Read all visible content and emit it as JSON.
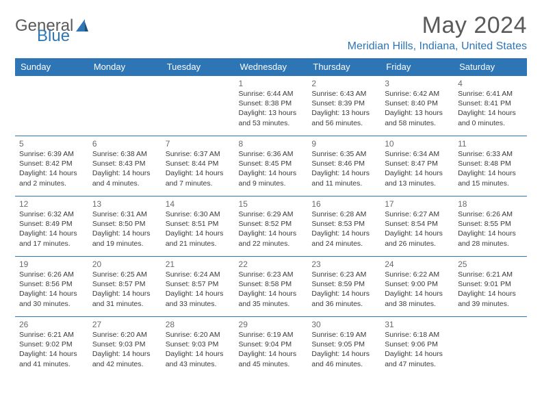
{
  "logo": {
    "word1": "General",
    "word2": "Blue"
  },
  "title": "May 2024",
  "location": "Meridian Hills, Indiana, United States",
  "colors": {
    "accent": "#2e75b6",
    "text": "#333333",
    "muted": "#6a6a6a",
    "bg": "#ffffff"
  },
  "day_headers": [
    "Sunday",
    "Monday",
    "Tuesday",
    "Wednesday",
    "Thursday",
    "Friday",
    "Saturday"
  ],
  "weeks": [
    [
      null,
      null,
      null,
      {
        "n": "1",
        "sr": "Sunrise: 6:44 AM",
        "ss": "Sunset: 8:38 PM",
        "dl1": "Daylight: 13 hours",
        "dl2": "and 53 minutes."
      },
      {
        "n": "2",
        "sr": "Sunrise: 6:43 AM",
        "ss": "Sunset: 8:39 PM",
        "dl1": "Daylight: 13 hours",
        "dl2": "and 56 minutes."
      },
      {
        "n": "3",
        "sr": "Sunrise: 6:42 AM",
        "ss": "Sunset: 8:40 PM",
        "dl1": "Daylight: 13 hours",
        "dl2": "and 58 minutes."
      },
      {
        "n": "4",
        "sr": "Sunrise: 6:41 AM",
        "ss": "Sunset: 8:41 PM",
        "dl1": "Daylight: 14 hours",
        "dl2": "and 0 minutes."
      }
    ],
    [
      {
        "n": "5",
        "sr": "Sunrise: 6:39 AM",
        "ss": "Sunset: 8:42 PM",
        "dl1": "Daylight: 14 hours",
        "dl2": "and 2 minutes."
      },
      {
        "n": "6",
        "sr": "Sunrise: 6:38 AM",
        "ss": "Sunset: 8:43 PM",
        "dl1": "Daylight: 14 hours",
        "dl2": "and 4 minutes."
      },
      {
        "n": "7",
        "sr": "Sunrise: 6:37 AM",
        "ss": "Sunset: 8:44 PM",
        "dl1": "Daylight: 14 hours",
        "dl2": "and 7 minutes."
      },
      {
        "n": "8",
        "sr": "Sunrise: 6:36 AM",
        "ss": "Sunset: 8:45 PM",
        "dl1": "Daylight: 14 hours",
        "dl2": "and 9 minutes."
      },
      {
        "n": "9",
        "sr": "Sunrise: 6:35 AM",
        "ss": "Sunset: 8:46 PM",
        "dl1": "Daylight: 14 hours",
        "dl2": "and 11 minutes."
      },
      {
        "n": "10",
        "sr": "Sunrise: 6:34 AM",
        "ss": "Sunset: 8:47 PM",
        "dl1": "Daylight: 14 hours",
        "dl2": "and 13 minutes."
      },
      {
        "n": "11",
        "sr": "Sunrise: 6:33 AM",
        "ss": "Sunset: 8:48 PM",
        "dl1": "Daylight: 14 hours",
        "dl2": "and 15 minutes."
      }
    ],
    [
      {
        "n": "12",
        "sr": "Sunrise: 6:32 AM",
        "ss": "Sunset: 8:49 PM",
        "dl1": "Daylight: 14 hours",
        "dl2": "and 17 minutes."
      },
      {
        "n": "13",
        "sr": "Sunrise: 6:31 AM",
        "ss": "Sunset: 8:50 PM",
        "dl1": "Daylight: 14 hours",
        "dl2": "and 19 minutes."
      },
      {
        "n": "14",
        "sr": "Sunrise: 6:30 AM",
        "ss": "Sunset: 8:51 PM",
        "dl1": "Daylight: 14 hours",
        "dl2": "and 21 minutes."
      },
      {
        "n": "15",
        "sr": "Sunrise: 6:29 AM",
        "ss": "Sunset: 8:52 PM",
        "dl1": "Daylight: 14 hours",
        "dl2": "and 22 minutes."
      },
      {
        "n": "16",
        "sr": "Sunrise: 6:28 AM",
        "ss": "Sunset: 8:53 PM",
        "dl1": "Daylight: 14 hours",
        "dl2": "and 24 minutes."
      },
      {
        "n": "17",
        "sr": "Sunrise: 6:27 AM",
        "ss": "Sunset: 8:54 PM",
        "dl1": "Daylight: 14 hours",
        "dl2": "and 26 minutes."
      },
      {
        "n": "18",
        "sr": "Sunrise: 6:26 AM",
        "ss": "Sunset: 8:55 PM",
        "dl1": "Daylight: 14 hours",
        "dl2": "and 28 minutes."
      }
    ],
    [
      {
        "n": "19",
        "sr": "Sunrise: 6:26 AM",
        "ss": "Sunset: 8:56 PM",
        "dl1": "Daylight: 14 hours",
        "dl2": "and 30 minutes."
      },
      {
        "n": "20",
        "sr": "Sunrise: 6:25 AM",
        "ss": "Sunset: 8:57 PM",
        "dl1": "Daylight: 14 hours",
        "dl2": "and 31 minutes."
      },
      {
        "n": "21",
        "sr": "Sunrise: 6:24 AM",
        "ss": "Sunset: 8:57 PM",
        "dl1": "Daylight: 14 hours",
        "dl2": "and 33 minutes."
      },
      {
        "n": "22",
        "sr": "Sunrise: 6:23 AM",
        "ss": "Sunset: 8:58 PM",
        "dl1": "Daylight: 14 hours",
        "dl2": "and 35 minutes."
      },
      {
        "n": "23",
        "sr": "Sunrise: 6:23 AM",
        "ss": "Sunset: 8:59 PM",
        "dl1": "Daylight: 14 hours",
        "dl2": "and 36 minutes."
      },
      {
        "n": "24",
        "sr": "Sunrise: 6:22 AM",
        "ss": "Sunset: 9:00 PM",
        "dl1": "Daylight: 14 hours",
        "dl2": "and 38 minutes."
      },
      {
        "n": "25",
        "sr": "Sunrise: 6:21 AM",
        "ss": "Sunset: 9:01 PM",
        "dl1": "Daylight: 14 hours",
        "dl2": "and 39 minutes."
      }
    ],
    [
      {
        "n": "26",
        "sr": "Sunrise: 6:21 AM",
        "ss": "Sunset: 9:02 PM",
        "dl1": "Daylight: 14 hours",
        "dl2": "and 41 minutes."
      },
      {
        "n": "27",
        "sr": "Sunrise: 6:20 AM",
        "ss": "Sunset: 9:03 PM",
        "dl1": "Daylight: 14 hours",
        "dl2": "and 42 minutes."
      },
      {
        "n": "28",
        "sr": "Sunrise: 6:20 AM",
        "ss": "Sunset: 9:03 PM",
        "dl1": "Daylight: 14 hours",
        "dl2": "and 43 minutes."
      },
      {
        "n": "29",
        "sr": "Sunrise: 6:19 AM",
        "ss": "Sunset: 9:04 PM",
        "dl1": "Daylight: 14 hours",
        "dl2": "and 45 minutes."
      },
      {
        "n": "30",
        "sr": "Sunrise: 6:19 AM",
        "ss": "Sunset: 9:05 PM",
        "dl1": "Daylight: 14 hours",
        "dl2": "and 46 minutes."
      },
      {
        "n": "31",
        "sr": "Sunrise: 6:18 AM",
        "ss": "Sunset: 9:06 PM",
        "dl1": "Daylight: 14 hours",
        "dl2": "and 47 minutes."
      },
      null
    ]
  ]
}
